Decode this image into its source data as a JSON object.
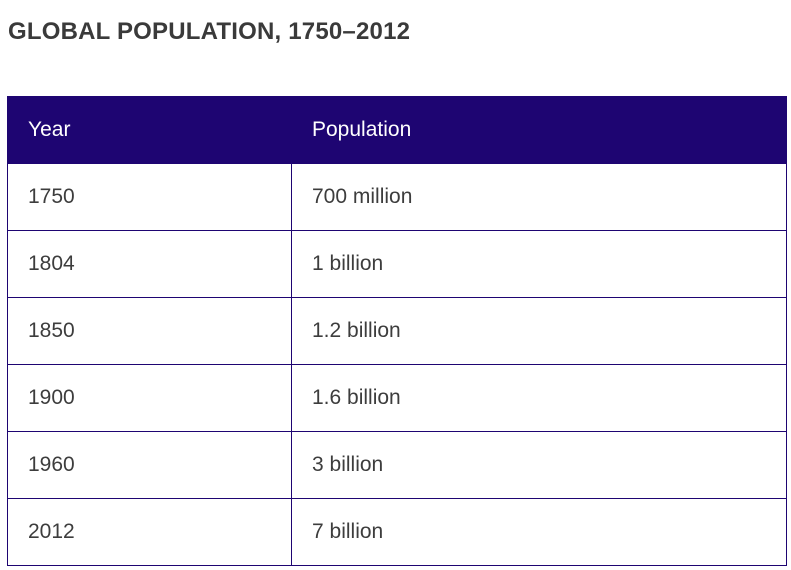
{
  "title": "GLOBAL POPULATION, 1750–2012",
  "table": {
    "headers": [
      "Year",
      "Population"
    ],
    "rows": [
      [
        "1750",
        "700 million"
      ],
      [
        "1804",
        "1 billion"
      ],
      [
        "1850",
        "1.2 billion"
      ],
      [
        "1900",
        "1.6 billion"
      ],
      [
        "1960",
        "3 billion"
      ],
      [
        "2012",
        "7 billion"
      ]
    ]
  },
  "colors": {
    "header_bg": "#1e0572",
    "header_text": "#ffffff",
    "border": "#1e0572"
  }
}
